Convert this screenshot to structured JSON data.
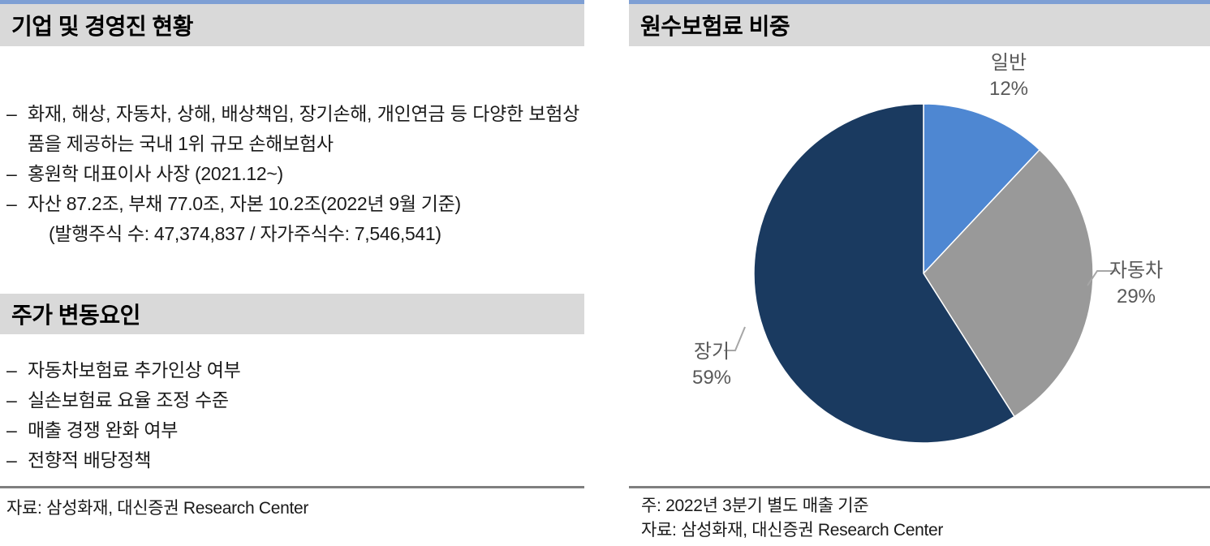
{
  "markers": {
    "dash": "–"
  },
  "left_panel": {
    "section1": {
      "title": "기업 및 경영진 현황",
      "bullets": [
        "화재, 해상, 자동차, 상해, 배상책임, 장기손해, 개인연금 등 다양한 보험상품을 제공하는 국내 1위 규모 손해보험사",
        "홍원학 대표이사 사장 (2021.12~)",
        "자산 87.2조, 부채 77.0조, 자본 10.2조(2022년 9월 기준)"
      ],
      "sub_note": "(발행주식 수: 47,374,837 / 자가주식수: 7,546,541)"
    },
    "section2": {
      "title": "주가 변동요인",
      "bullets": [
        "자동차보험료 추가인상 여부",
        "실손보험료 요율 조정 수준",
        "매출 경쟁 완화 여부",
        "전향적 배당정책"
      ]
    },
    "source": "자료: 삼성화재, 대신증권 Research Center"
  },
  "right_panel": {
    "title": "원수보험료 비중",
    "note": "주: 2022년 3분기 별도 매출 기준",
    "source": "자료: 삼성화재, 대신증권 Research Center"
  },
  "chart_data": {
    "type": "pie",
    "title": "원수보험료 비중",
    "categories": [
      "일반",
      "자동차",
      "장기"
    ],
    "values": [
      12,
      29,
      59
    ],
    "unit": "%",
    "colors": [
      "#4e87d2",
      "#999999",
      "#1a3a60"
    ],
    "start_angle_deg": 0,
    "direction": "clockwise",
    "legend_position": "outside-callouts",
    "labels": [
      {
        "name": "일반",
        "value_label": "12%"
      },
      {
        "name": "자동차",
        "value_label": "29%"
      },
      {
        "name": "장기",
        "value_label": "59%"
      }
    ]
  },
  "theme": {
    "header_bg": "#d9d9d9",
    "header_top_border": "#7e9fd4",
    "rule_color": "#7f7f7f",
    "label_color": "#595959",
    "leader_color": "#a6a6a6",
    "slice_divider": "#ffffff"
  }
}
